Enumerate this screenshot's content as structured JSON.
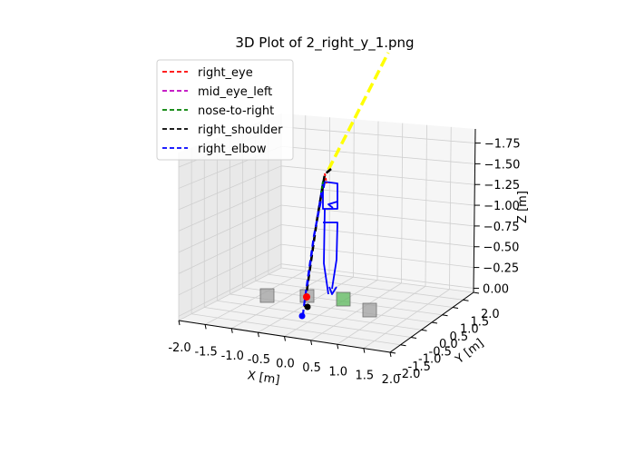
{
  "chart_data": {
    "type": "scatter",
    "title": "3D Plot of 2_right_y_1.png",
    "xlabel": "X [m]",
    "ylabel": "Y [m]",
    "zlabel": "Z [m]",
    "xlim": [
      -2.0,
      2.0
    ],
    "ylim": [
      -2.0,
      2.0
    ],
    "zlim": [
      0.0,
      1.75
    ],
    "x_ticks": [
      "-2.0",
      "-1.5",
      "-1.0",
      "-0.5",
      "0.0",
      "0.5",
      "1.0",
      "1.5",
      "2.0"
    ],
    "y_ticks": [
      "-2.0",
      "-1.5",
      "-1.0",
      "-0.5",
      "0.0",
      "0.5",
      "1.0",
      "1.5",
      "2.0"
    ],
    "z_ticks": [
      "0.00",
      "0.25",
      "0.50",
      "0.75",
      "1.00",
      "1.25",
      "1.50",
      "1.75"
    ],
    "z_tick_display": [
      "0.00",
      "−0.25",
      "−0.50",
      "−0.75",
      "−1.00",
      "−1.25",
      "−1.50",
      "−1.75"
    ],
    "grid": true,
    "legend_position": "top-left",
    "legend": [
      {
        "name": "right_eye",
        "color": "#ff0000"
      },
      {
        "name": "mid_eye_left",
        "color": "#bf00bf"
      },
      {
        "name": "nose-to-right",
        "color": "#008000"
      },
      {
        "name": "right_shoulder",
        "color": "#000000"
      },
      {
        "name": "right_elbow",
        "color": "#0000ff"
      }
    ],
    "colors": {
      "gaze_ray": "#ffff00",
      "skeleton": "#0000ff",
      "marker_box": "#a0a0a0",
      "target_box": "#5cb85c"
    }
  }
}
